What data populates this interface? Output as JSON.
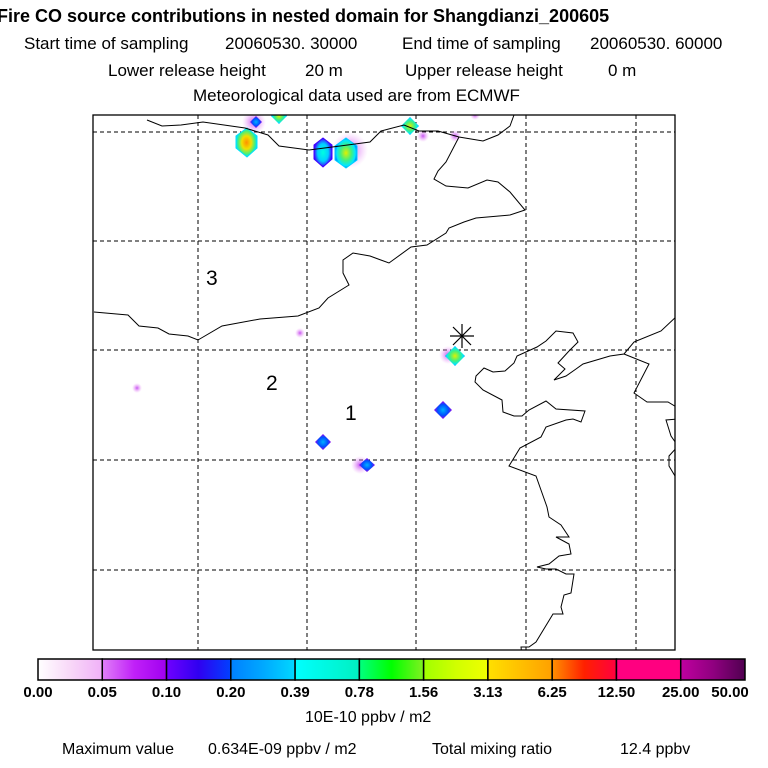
{
  "header": {
    "title": "Fire CO source contributions in nested domain for Shangdianzi_200605",
    "start_label": "Start time of sampling",
    "start_value": "20060530. 30000",
    "end_label": "End time of sampling",
    "end_value": "20060530. 60000",
    "lower_label": "Lower release height",
    "lower_value": "20 m",
    "upper_label": "Upper release height",
    "upper_value": "0 m",
    "met_line": "Meteorological data used are from ECMWF"
  },
  "map": {
    "region_labels": [
      "3",
      "2",
      "1"
    ],
    "receptor_marker": "asterisk-icon"
  },
  "colorbar": {
    "ticks": [
      "0.00",
      "0.05",
      "0.10",
      "0.20",
      "0.39",
      "0.78",
      "1.56",
      "3.13",
      "6.25",
      "12.50",
      "25.00",
      "50.00"
    ],
    "colors": [
      [
        "#ffffff",
        "#f8d8f8",
        "#f0b0f8"
      ],
      [
        "#e080f8",
        "#c020f8",
        "#a000f0"
      ],
      [
        "#7000ff",
        "#3000f0",
        "#0040ff"
      ],
      [
        "#0080ff",
        "#00a8ff",
        "#00d8ff"
      ],
      [
        "#00ffff",
        "#00f8e0",
        "#00f0c0"
      ],
      [
        "#00ff80",
        "#00ff00",
        "#80f020"
      ],
      [
        "#a0ff00",
        "#d0ff00",
        "#f0ff00"
      ],
      [
        "#ffe000",
        "#ffc000",
        "#ffa000"
      ],
      [
        "#ff9000",
        "#ff2000",
        "#ff0040"
      ],
      [
        "#ff0080",
        "#ff0080",
        "#ff0080"
      ],
      [
        "#c000a0",
        "#900080",
        "#500050"
      ]
    ],
    "units": "10E-10 ppbv / m2"
  },
  "footer": {
    "max_label": "Maximum value",
    "max_value": "0.634E-09 ppbv / m2",
    "total_label": "Total mixing ratio",
    "total_value": "12.4 ppbv"
  }
}
